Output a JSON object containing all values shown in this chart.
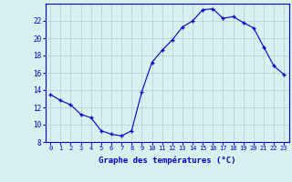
{
  "hours": [
    0,
    1,
    2,
    3,
    4,
    5,
    6,
    7,
    8,
    9,
    10,
    11,
    12,
    13,
    14,
    15,
    16,
    17,
    18,
    19,
    20,
    21,
    22,
    23
  ],
  "temperatures": [
    13.5,
    12.8,
    12.3,
    11.2,
    10.8,
    9.3,
    8.9,
    8.7,
    9.3,
    13.8,
    17.2,
    18.6,
    19.8,
    21.3,
    22.0,
    23.3,
    23.4,
    22.3,
    22.5,
    21.8,
    21.2,
    19.0,
    16.8,
    15.8
  ],
  "ylim": [
    8,
    24
  ],
  "yticks": [
    8,
    10,
    12,
    14,
    16,
    18,
    20,
    22
  ],
  "xlabel": "Graphe des températures (°C)",
  "line_color": "#0000cc",
  "marker": "+",
  "bg_color": "#d8f0f0",
  "grid_color": "#b0cece",
  "xlabel_color": "#0000cc",
  "tick_color": "#0000cc",
  "spine_color": "#0000cc"
}
